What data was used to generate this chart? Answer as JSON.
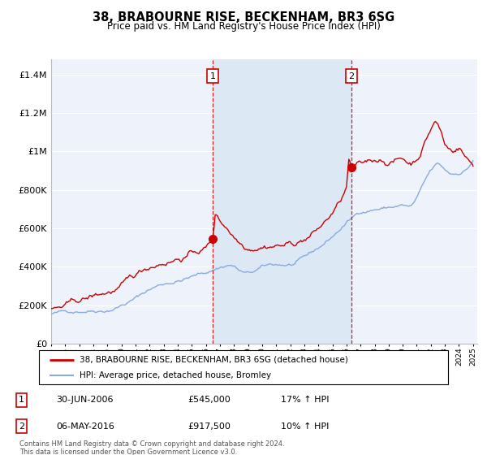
{
  "title_line1": "38, BRABOURNE RISE, BECKENHAM, BR3 6SG",
  "title_line2": "Price paid vs. HM Land Registry's House Price Index (HPI)",
  "ylabel_ticks": [
    "£0",
    "£200K",
    "£400K",
    "£600K",
    "£800K",
    "£1M",
    "£1.2M",
    "£1.4M"
  ],
  "ylabel_values": [
    0,
    200000,
    400000,
    600000,
    800000,
    1000000,
    1200000,
    1400000
  ],
  "ylim": [
    0,
    1480000
  ],
  "x_start_year": 1995,
  "x_end_year": 2025,
  "purchase1_date": 2006.5,
  "purchase1_price": 545000,
  "purchase2_date": 2016.35,
  "purchase2_price": 917500,
  "line_property_color": "#cc0000",
  "line_hpi_color": "#88aadd",
  "shade_color": "#dde8f5",
  "background_color": "#eef2fa",
  "grid_color": "#ffffff",
  "legend_line1": "38, BRABOURNE RISE, BECKENHAM, BR3 6SG (detached house)",
  "legend_line2": "HPI: Average price, detached house, Bromley",
  "annotation1": [
    "1",
    "30-JUN-2006",
    "£545,000",
    "17% ↑ HPI"
  ],
  "annotation2": [
    "2",
    "06-MAY-2016",
    "£917,500",
    "10% ↑ HPI"
  ],
  "footer": "Contains HM Land Registry data © Crown copyright and database right 2024.\nThis data is licensed under the Open Government Licence v3.0."
}
